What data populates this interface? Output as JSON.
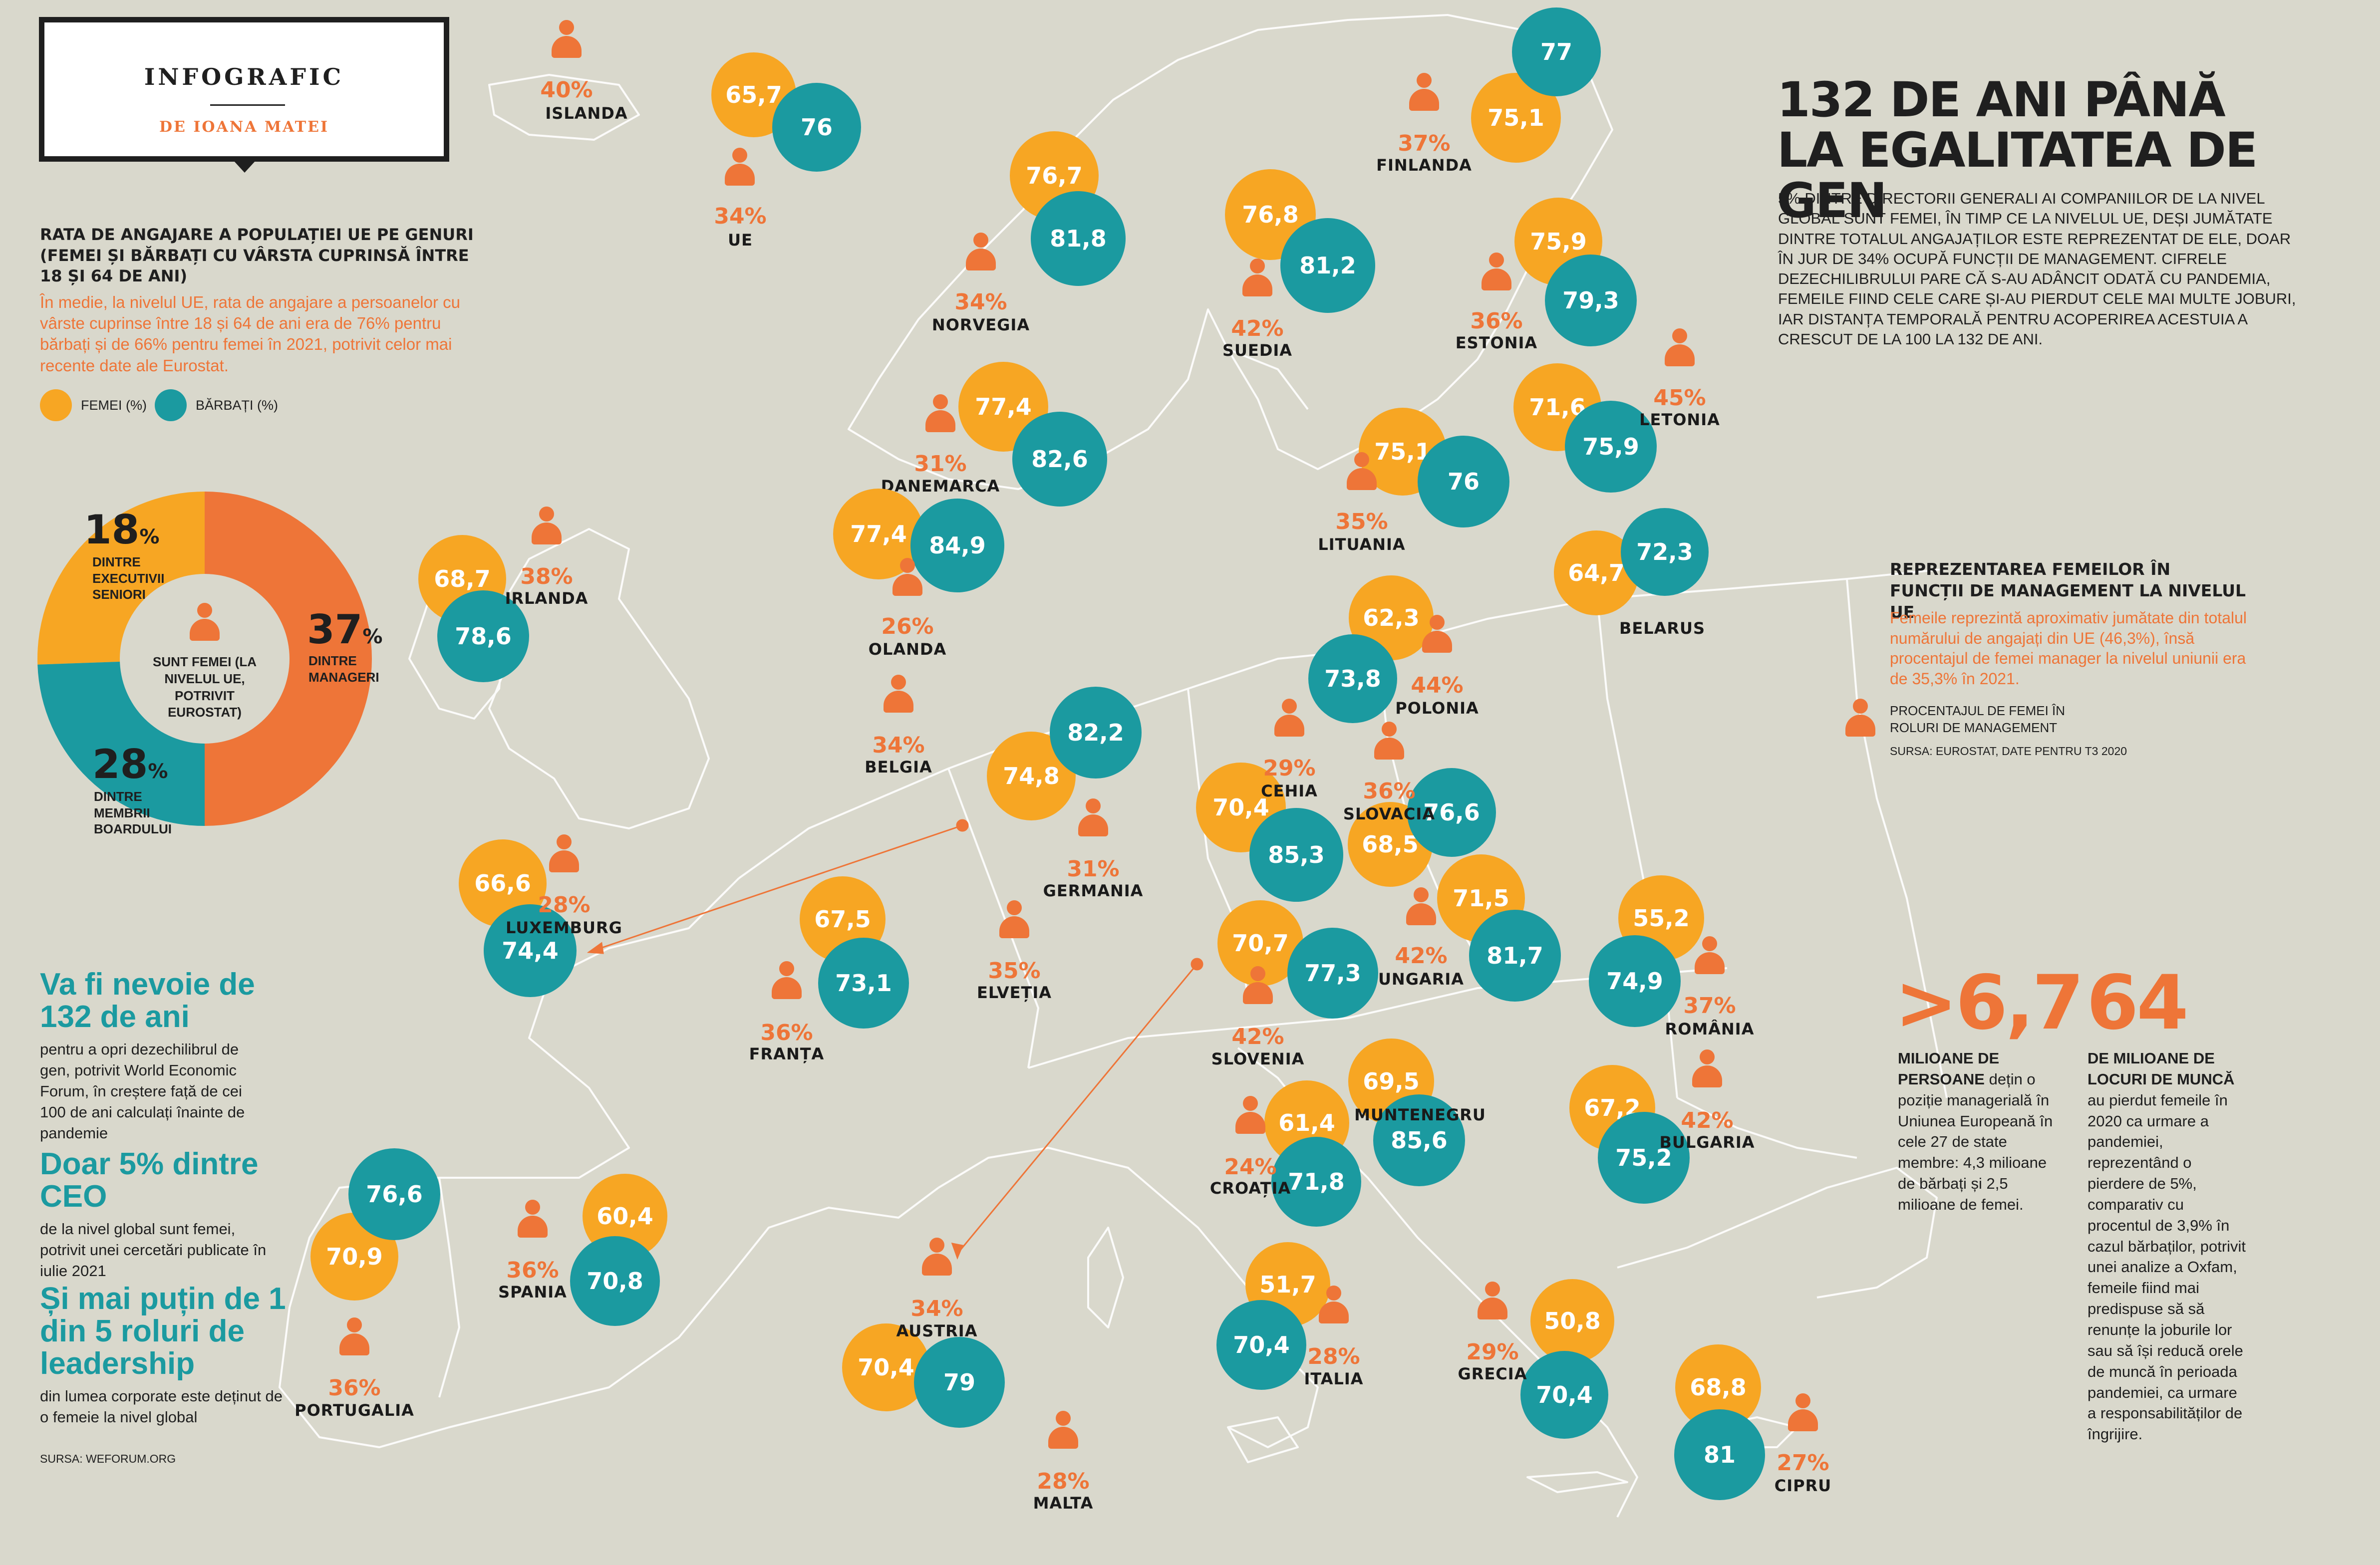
{
  "header": {
    "tag": "INFOGRAFIC",
    "author": "DE IOANA MATEI"
  },
  "employment": {
    "title": "RATA DE ANGAJARE A POPULAȚIEI UE PE GENURI (FEMEI ȘI BĂRBAȚI CU VÂRSTA CUPRINSĂ ÎNTRE 18 ȘI 64 DE ANI)",
    "text": "În medie, la nivelul UE, rata de angajare a persoanelor cu vârste cuprinse între 18 și 64 de ani era de 76% pentru bărbați și de 66% pentru femei în 2021, potrivit celor mai recente date ale Eurostat.",
    "legend_women": "FEMEI (%)",
    "legend_men": "BĂRBAȚI (%)"
  },
  "donut": {
    "center": "SUNT FEMEI (LA NIVELUL UE, POTRIVIT EUROSTAT)",
    "segments": [
      {
        "value": "18",
        "label": "DINTRE EXECUTIVII SENIORI",
        "color": "#f7a623",
        "share": 18
      },
      {
        "value": "37",
        "label": "DINTRE MANAGERI",
        "color": "#ee7538",
        "share": 37
      },
      {
        "value": "28",
        "label": "DINTRE MEMBRII BOARDULUI",
        "color": "#1b9aa0",
        "share": 28
      }
    ],
    "unit": "%"
  },
  "facts_left": [
    {
      "headline": "Va fi nevoie de 132 de ani",
      "text": "pentru a opri dezechilibrul de gen, potrivit World Economic Forum, în creștere față de cei 100 de ani calculați înainte de pandemie"
    },
    {
      "headline": "Doar 5% dintre CEO",
      "text": "de la nivel global sunt femei, potrivit unei cercetări publicate în iulie 2021"
    },
    {
      "headline": "Și mai puțin de 1 din 5 roluri de leadership",
      "text": "din lumea corporate este deținut de o femeie la nivel global"
    }
  ],
  "source_left": "SURSA: WEFORUM.ORG",
  "main": {
    "title_line1": "132 DE ANI PÂNĂ",
    "title_line2": "LA EGALITATEA DE GEN",
    "text": "5% DINTRE DIRECTORII GENERALI AI COMPANIILOR DE LA NIVEL GLOBAL SUNT FEMEI, ÎN TIMP CE LA NIVELUL UE, DEȘI JUMĂTATE DINTRE TOTALUL ANGAJAȚILOR ESTE REPREZENTAT DE ELE, DOAR ÎN JUR DE 34% OCUPĂ FUNCȚII DE MANAGEMENT. CIFRELE DEZECHILIBRULUI PARE CĂ S-AU ADÂNCIT ODATĂ CU PANDEMIA, FEMEILE FIIND CELE CARE ȘI-AU PIERDUT CELE MAI MULTE JOBURI, IAR DISTANȚA TEMPORALĂ PENTRU ACOPERIREA ACESTUIA A CRESCUT DE LA 100 LA 132 DE ANI."
  },
  "management": {
    "title": "REPREZENTAREA FEMEILOR ÎN FUNCȚII DE MANAGEMENT LA NIVELUL UE",
    "text": "Femeile reprezintă aproximativ jumătate din totalul numărului de angajați din UE (46,3%), însă procentajul de femei manager la nivelul uniunii era de 35,3% în 2021.",
    "legend": "PROCENTAJUL DE FEMEI ÎN ROLURI DE MANAGEMENT",
    "source": "SURSA: EUROSTAT, DATE PENTRU T3 2020"
  },
  "stat1": {
    "number": ">6,7",
    "bold": "MILIOANE DE PERSOANE",
    "text": " dețin o poziție managerială în Uniunea Europeană în cele 27 de state membre: 4,3 milioane de bărbați și 2,5 milioane de femei."
  },
  "stat2": {
    "number": "64",
    "bold": "DE MILIOANE DE LOCURI DE MUNCĂ",
    "text": " au pierdut femeile în 2020 ca urmare a pandemiei, reprezentând o pierdere de 5%, comparativ cu procentul de 3,9% în cazul bărbaților, potrivit unei analize a Oxfam, femeile fiind mai predispuse să să renunțe la joburile lor sau să își reducă orele de muncă în perioada pandemiei, ca urmare a responsabilităților de îngrijire."
  },
  "countries": [
    {
      "name": "ISLANDA",
      "manager": "40%"
    },
    {
      "name": "UE",
      "women": "65,7",
      "men": "76",
      "manager": "34%"
    },
    {
      "name": "NORVEGIA",
      "women": "76,7",
      "men": "81,8",
      "manager": "34%"
    },
    {
      "name": "SUEDIA",
      "women": "76,8",
      "men": "81,2",
      "manager": "42%"
    },
    {
      "name": "FINLANDA",
      "women": "75,1",
      "men": "77",
      "manager": "37%"
    },
    {
      "name": "ESTONIA",
      "women": "75,9",
      "men": "79,3",
      "manager": "36%"
    },
    {
      "name": "LETONIA",
      "women": "71,6",
      "men": "75,9",
      "manager": "45%"
    },
    {
      "name": "LITUANIA",
      "women": "75,1",
      "men": "76",
      "manager": "35%"
    },
    {
      "name": "BELARUS",
      "women": "64,7",
      "men": "72,3"
    },
    {
      "name": "DANEMARCA",
      "women": "77,4",
      "men": "82,6",
      "manager": "31%"
    },
    {
      "name": "OLANDA",
      "women": "77,4",
      "men": "84,9",
      "manager": "26%"
    },
    {
      "name": "IRLANDA",
      "women": "68,7",
      "men": "78,6",
      "manager": "38%"
    },
    {
      "name": "BELGIA",
      "manager": "34%"
    },
    {
      "name": "GERMANIA",
      "women": "74,8",
      "men": "82,2",
      "manager": "31%"
    },
    {
      "name": "POLONIA",
      "women": "62,3",
      "men": "73,8",
      "manager": "44%"
    },
    {
      "name": "CEHIA",
      "women": "70,4",
      "men": "85,3",
      "manager": "29%"
    },
    {
      "name": "SLOVACIA",
      "women": "68,5",
      "men": "76,6",
      "manager": "36%"
    },
    {
      "name": "LUXEMBURG",
      "women": "66,6",
      "men": "74,4",
      "manager": "28%"
    },
    {
      "name": "FRANȚA",
      "women": "67,5",
      "men": "73,1",
      "manager": "36%"
    },
    {
      "name": "ELVEȚIA",
      "manager": "35%"
    },
    {
      "name": "SLOVENIA",
      "women": "70,7",
      "men": "77,3",
      "manager": "42%"
    },
    {
      "name": "UNGARIA",
      "women": "71,5",
      "men": "81,7",
      "manager": "42%"
    },
    {
      "name": "ROMÂNIA",
      "women": "55,2",
      "men": "74,9",
      "manager": "37%"
    },
    {
      "name": "MUNTENEGRU",
      "women": "69,5",
      "men": "85,6"
    },
    {
      "name": "CROAȚIA",
      "women": "61,4",
      "men": "71,8",
      "manager": "24%"
    },
    {
      "name": "BULGARIA",
      "women": "67,2",
      "men": "75,2",
      "manager": "42%"
    },
    {
      "name": "PORTUGALIA",
      "women": "70,9",
      "men": "76,6",
      "manager": "36%"
    },
    {
      "name": "SPANIA",
      "women": "60,4",
      "men": "70,8",
      "manager": "36%"
    },
    {
      "name": "AUSTRIA",
      "women": "70,4",
      "men": "79",
      "manager": "34%"
    },
    {
      "name": "ITALIA",
      "women": "51,7",
      "men": "70,4",
      "manager": "28%"
    },
    {
      "name": "GRECIA",
      "women": "50,8",
      "men": "70,4",
      "manager": "29%"
    },
    {
      "name": "CIPRU",
      "women": "68,8",
      "men": "81",
      "manager": "27%"
    },
    {
      "name": "MALTA",
      "manager": "28%"
    }
  ],
  "colors": {
    "women": "#f7a623",
    "men": "#1b9aa0",
    "accent": "#ee7538",
    "background": "#d9d8cc"
  }
}
